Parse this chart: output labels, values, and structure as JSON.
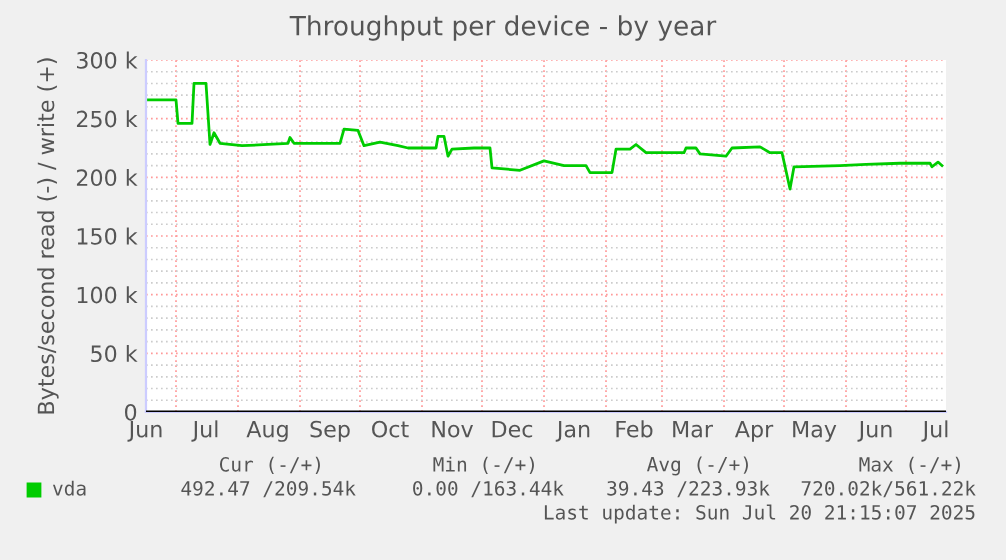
{
  "chart_data": {
    "type": "line",
    "title": "Throughput per device - by year",
    "ylabel": "Bytes/second read (-) / write (+)",
    "xlim": [
      "2024-06-16",
      "2025-07-21"
    ],
    "xticks": [
      {
        "value": "2024-06-16",
        "label": "Jun"
      },
      {
        "value": "2024-07-01",
        "label": null
      },
      {
        "value": "2024-07-16",
        "label": "Jul"
      },
      {
        "value": "2024-08-01",
        "label": null
      },
      {
        "value": "2024-08-16",
        "label": "Aug"
      },
      {
        "value": "2024-09-01",
        "label": null
      },
      {
        "value": "2024-09-16",
        "label": "Sep"
      },
      {
        "value": "2024-10-01",
        "label": null
      },
      {
        "value": "2024-10-16",
        "label": "Oct"
      },
      {
        "value": "2024-11-01",
        "label": null
      },
      {
        "value": "2024-11-16",
        "label": "Nov"
      },
      {
        "value": "2024-12-01",
        "label": null
      },
      {
        "value": "2024-12-16",
        "label": "Dec"
      },
      {
        "value": "2025-01-01",
        "label": null
      },
      {
        "value": "2025-01-16",
        "label": "Jan"
      },
      {
        "value": "2025-02-01",
        "label": null
      },
      {
        "value": "2025-02-15",
        "label": "Feb"
      },
      {
        "value": "2025-03-01",
        "label": null
      },
      {
        "value": "2025-03-16",
        "label": "Mar"
      },
      {
        "value": "2025-04-01",
        "label": null
      },
      {
        "value": "2025-04-16",
        "label": "Apr"
      },
      {
        "value": "2025-05-01",
        "label": null
      },
      {
        "value": "2025-05-16",
        "label": "May"
      },
      {
        "value": "2025-06-01",
        "label": null
      },
      {
        "value": "2025-06-16",
        "label": "Jun"
      },
      {
        "value": "2025-07-01",
        "label": null
      },
      {
        "value": "2025-07-16",
        "label": "Jul"
      }
    ],
    "ylim": [
      0,
      300000
    ],
    "yticks": [
      0,
      {
        "value": 10000,
        "label": null
      },
      {
        "value": 20000,
        "label": null
      },
      {
        "value": 30000,
        "label": null
      },
      {
        "value": 40000,
        "label": null
      },
      {
        "value": 50000,
        "label": "50 k"
      },
      {
        "value": 60000,
        "label": null
      },
      {
        "value": 70000,
        "label": null
      },
      {
        "value": 80000,
        "label": null
      },
      {
        "value": 90000,
        "label": null
      },
      {
        "value": 100000,
        "label": "100 k"
      },
      {
        "value": 110000,
        "label": null
      },
      {
        "value": 120000,
        "label": null
      },
      {
        "value": 130000,
        "label": null
      },
      {
        "value": 140000,
        "label": null
      },
      {
        "value": 150000,
        "label": "150 k"
      },
      {
        "value": 160000,
        "label": null
      },
      {
        "value": 170000,
        "label": null
      },
      {
        "value": 180000,
        "label": null
      },
      {
        "value": 190000,
        "label": null
      },
      {
        "value": 200000,
        "label": "200 k"
      },
      {
        "value": 210000,
        "label": null
      },
      {
        "value": 220000,
        "label": null
      },
      {
        "value": 230000,
        "label": null
      },
      {
        "value": 240000,
        "label": null
      },
      {
        "value": 250000,
        "label": "250 k"
      },
      {
        "value": 260000,
        "label": null
      },
      {
        "value": 270000,
        "label": null
      },
      {
        "value": 280000,
        "label": null
      },
      {
        "value": 290000,
        "label": null
      },
      {
        "value": 300000,
        "label": "300 k"
      }
    ],
    "grid": true,
    "legend": "bottom left",
    "ref_lines": [
      {
        "axis": "y",
        "value": 0,
        "color": "#000000"
      }
    ],
    "series": [
      {
        "name": "vda",
        "color": "#00cc00",
        "x": [
          "2024-06-17",
          "2024-07-01",
          "2024-07-02",
          "2024-07-09",
          "2024-07-10",
          "2024-07-16",
          "2024-07-18",
          "2024-07-20",
          "2024-07-23",
          "2024-08-03",
          "2024-08-16",
          "2024-08-26",
          "2024-08-27",
          "2024-08-29",
          "2024-09-21",
          "2024-09-23",
          "2024-09-30",
          "2024-10-03",
          "2024-10-11",
          "2024-10-20",
          "2024-10-25",
          "2024-11-08",
          "2024-11-09",
          "2024-11-12",
          "2024-11-14",
          "2024-11-16",
          "2024-11-27",
          "2024-12-05",
          "2024-12-06",
          "2024-12-20",
          "2025-01-01",
          "2025-01-11",
          "2025-01-22",
          "2025-01-24",
          "2025-02-04",
          "2025-02-06",
          "2025-02-13",
          "2025-02-16",
          "2025-02-21",
          "2025-03-12",
          "2025-03-13",
          "2025-03-18",
          "2025-03-20",
          "2025-04-02",
          "2025-04-05",
          "2025-04-19",
          "2025-04-24",
          "2025-04-30",
          "2025-05-04",
          "2025-05-06",
          "2025-05-29",
          "2025-06-11",
          "2025-06-28",
          "2025-07-13",
          "2025-07-14",
          "2025-07-17",
          "2025-07-19"
        ],
        "values": [
          266000,
          266000,
          246000,
          246000,
          280000,
          280000,
          228000,
          238000,
          229000,
          227000,
          228000,
          229000,
          234000,
          229000,
          229000,
          241000,
          240000,
          227000,
          230000,
          227000,
          225000,
          225000,
          235000,
          235000,
          218000,
          224000,
          225000,
          225000,
          208000,
          206000,
          214000,
          210000,
          210000,
          204000,
          204000,
          224000,
          224000,
          228000,
          221000,
          221000,
          225000,
          225000,
          220000,
          218000,
          225000,
          226000,
          221000,
          221000,
          190000,
          209000,
          210000,
          211000,
          212000,
          212000,
          209000,
          213000,
          210000
        ]
      }
    ],
    "annotations": [
      "Cur (-/+)",
      "Min (-/+)",
      "Avg (-/+)",
      "Max (-/+)",
      "492.47 /209.54k",
      "0.00 /163.44k",
      "39.43 /223.93k",
      "720.02k/561.22k",
      "Last update: Sun Jul 20 21:15:07 2025"
    ]
  }
}
